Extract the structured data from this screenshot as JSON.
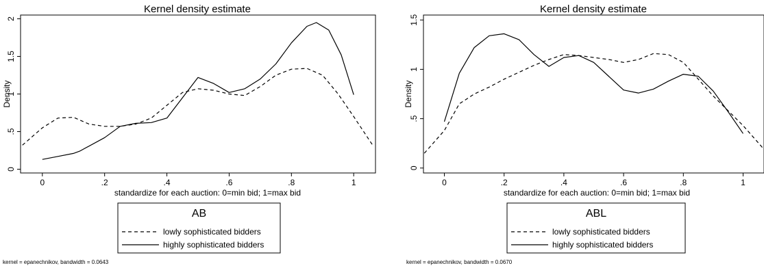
{
  "chart_data": [
    {
      "type": "line",
      "title": "Kernel density estimate",
      "xlabel": "standardize for each auction: 0=min bid; 1=max bid",
      "ylabel": "Density",
      "xlim": [
        -0.07,
        1.07
      ],
      "ylim": [
        -0.05,
        2.05
      ],
      "xticks": [
        "0",
        ".2",
        ".4",
        ".6",
        ".8",
        "1"
      ],
      "xtick_values": [
        0,
        0.2,
        0.4,
        0.6,
        0.8,
        1
      ],
      "yticks": [
        "0",
        ".5",
        "1",
        "1.5",
        "2"
      ],
      "ytick_values": [
        0,
        0.5,
        1,
        1.5,
        2
      ],
      "legend_title": "AB",
      "legend_position": "bottom",
      "note": "kernel = epanechnikov, bandwidth = 0.0643",
      "series": [
        {
          "name": "lowly sophisticated bidders",
          "style": "dashed",
          "x": [
            -0.064,
            0.0,
            0.05,
            0.1,
            0.15,
            0.2,
            0.25,
            0.3,
            0.35,
            0.4,
            0.45,
            0.5,
            0.55,
            0.6,
            0.65,
            0.7,
            0.75,
            0.8,
            0.85,
            0.9,
            0.95,
            1.0,
            1.064
          ],
          "y": [
            0.32,
            0.55,
            0.68,
            0.69,
            0.6,
            0.57,
            0.57,
            0.6,
            0.68,
            0.85,
            1.02,
            1.07,
            1.05,
            1.0,
            0.98,
            1.1,
            1.25,
            1.33,
            1.34,
            1.25,
            1.0,
            0.7,
            0.3
          ]
        },
        {
          "name": "highly sophisticated bidders",
          "style": "solid",
          "x": [
            0.0,
            0.05,
            0.1,
            0.12,
            0.2,
            0.25,
            0.3,
            0.35,
            0.4,
            0.45,
            0.5,
            0.55,
            0.6,
            0.65,
            0.7,
            0.75,
            0.8,
            0.85,
            0.88,
            0.92,
            0.96,
            1.0
          ],
          "y": [
            0.13,
            0.17,
            0.21,
            0.24,
            0.42,
            0.57,
            0.61,
            0.62,
            0.68,
            0.95,
            1.22,
            1.14,
            1.02,
            1.07,
            1.2,
            1.4,
            1.68,
            1.9,
            1.95,
            1.85,
            1.52,
            0.99
          ]
        }
      ]
    },
    {
      "type": "line",
      "title": "Kernel density estimate",
      "xlabel": "standardize for each auction: 0=min bid; 1=max bid",
      "ylabel": "Density",
      "xlim": [
        -0.07,
        1.07
      ],
      "ylim": [
        -0.05,
        1.55
      ],
      "xticks": [
        "0",
        ".2",
        ".4",
        ".6",
        ".8",
        "1"
      ],
      "xtick_values": [
        0,
        0.2,
        0.4,
        0.6,
        0.8,
        1
      ],
      "yticks": [
        "0",
        ".5",
        "1",
        "1.5"
      ],
      "ytick_values": [
        0,
        0.5,
        1,
        1.5
      ],
      "legend_title": "ABL",
      "legend_position": "bottom",
      "note": "kernel = epanechnikov, bandwidth = 0.0670",
      "series": [
        {
          "name": "lowly sophisticated bidders",
          "style": "dashed",
          "x": [
            -0.067,
            0.0,
            0.05,
            0.1,
            0.15,
            0.2,
            0.25,
            0.3,
            0.35,
            0.4,
            0.45,
            0.5,
            0.55,
            0.6,
            0.65,
            0.7,
            0.75,
            0.8,
            0.85,
            0.9,
            0.95,
            1.0,
            1.067
          ],
          "y": [
            0.15,
            0.38,
            0.65,
            0.75,
            0.82,
            0.9,
            0.97,
            1.04,
            1.1,
            1.15,
            1.14,
            1.12,
            1.1,
            1.07,
            1.1,
            1.16,
            1.15,
            1.07,
            0.9,
            0.73,
            0.58,
            0.43,
            0.2
          ]
        },
        {
          "name": "highly sophisticated bidders",
          "style": "solid",
          "x": [
            0.0,
            0.05,
            0.1,
            0.15,
            0.2,
            0.25,
            0.3,
            0.35,
            0.4,
            0.45,
            0.5,
            0.55,
            0.6,
            0.65,
            0.7,
            0.75,
            0.8,
            0.85,
            0.9,
            0.95,
            1.0
          ],
          "y": [
            0.47,
            0.96,
            1.22,
            1.34,
            1.36,
            1.3,
            1.15,
            1.03,
            1.12,
            1.14,
            1.07,
            0.93,
            0.79,
            0.76,
            0.8,
            0.88,
            0.95,
            0.93,
            0.78,
            0.57,
            0.35
          ]
        }
      ]
    }
  ]
}
